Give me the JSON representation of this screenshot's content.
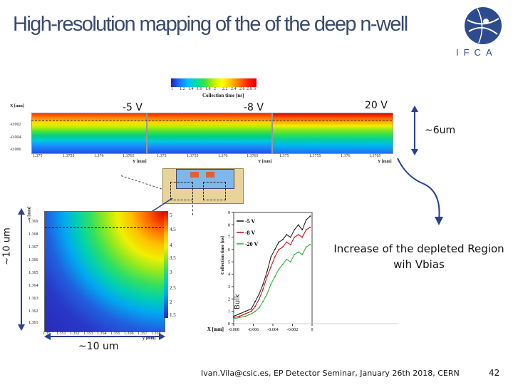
{
  "slide": {
    "title": "High-resolution mapping of the of the deep n-well",
    "logo_text": "IFCA",
    "footer": "Ivan.Vila@csic.es, EP Detector Seminar, January 26th 2018, CERN",
    "page_number": "42"
  },
  "top_maps": {
    "colorbar_label": "Collection time [ns]",
    "colorbar_ticks": [
      "1",
      "1.2",
      "1.4",
      "1.6",
      "1.8",
      "2",
      "2.2",
      "2.4",
      "2.6",
      "2.8",
      "3"
    ],
    "ylabel": "X [mm]",
    "y_ticks": [
      "-0.002",
      "-0.004",
      "-0.006"
    ],
    "xlabel": "Y [mm]",
    "panels": [
      {
        "voltage": "-5 V",
        "x_ticks": [
          "1.375",
          "1.3755",
          "1.376",
          "1.3765"
        ]
      },
      {
        "voltage": "-8 V",
        "x_ticks": [
          "1.375",
          "1.3755",
          "1.376",
          "1.3765"
        ]
      },
      {
        "voltage": "20 V",
        "x_ticks": [
          "1.375",
          "1.3755",
          "1.376",
          "1.3765"
        ]
      }
    ]
  },
  "annotations": {
    "depth": "~6um",
    "depleted": "Increase of the depleted Region wih Vbias",
    "height": "~10 um",
    "width": "~10 um",
    "bulk": "Bulk"
  },
  "heatmap": {
    "ylabel": "x [mm]",
    "xlabel": "y [mm]",
    "y_ticks": [
      "1.369",
      "1.368",
      "1.367",
      "1.366",
      "1.365",
      "1.364",
      "1.363",
      "1.362",
      "1.361"
    ],
    "x_ticks": [
      "1.35",
      "1.351",
      "1.352",
      "1.353",
      "1.354",
      "1.355",
      "1.356",
      "1.357",
      "1.358"
    ],
    "colorbar_ticks": [
      "5",
      "4.5",
      "4",
      "3.5",
      "3",
      "2.5",
      "2",
      "1.5"
    ]
  },
  "chart_data": {
    "type": "line",
    "title": "",
    "xlabel": "X [mm]",
    "ylabel": "Collection time [ns]",
    "xlim": [
      -0.008,
      0
    ],
    "ylim": [
      0,
      9
    ],
    "x_ticks": [
      "-0.008",
      "-0.006",
      "-0.004",
      "-0.002",
      "0"
    ],
    "y_ticks": [
      "0",
      "1",
      "2",
      "3",
      "4",
      "5",
      "6",
      "7",
      "8",
      "9"
    ],
    "legend": "top-left",
    "series": [
      {
        "name": "-5 V",
        "color": "#111111",
        "x": [
          -0.008,
          -0.0074,
          -0.0068,
          -0.0062,
          -0.0058,
          -0.0054,
          -0.005,
          -0.0046,
          -0.0042,
          -0.0038,
          -0.0034,
          -0.003,
          -0.0026,
          -0.0022,
          -0.0018,
          -0.0014,
          -0.001,
          -0.0006,
          -0.0002
        ],
        "y": [
          0.6,
          0.8,
          1.0,
          1.2,
          1.8,
          2.4,
          3.2,
          4.2,
          5.4,
          6.0,
          6.6,
          6.8,
          7.2,
          7.0,
          7.6,
          8.0,
          7.6,
          8.4,
          8.7
        ]
      },
      {
        "name": "-8 V",
        "color": "#cc0000",
        "x": [
          -0.008,
          -0.0074,
          -0.0068,
          -0.0062,
          -0.0058,
          -0.0054,
          -0.005,
          -0.0046,
          -0.0042,
          -0.0038,
          -0.0034,
          -0.003,
          -0.0026,
          -0.0022,
          -0.0018,
          -0.0014,
          -0.001,
          -0.0006,
          -0.0002
        ],
        "y": [
          0.5,
          0.6,
          0.8,
          1.0,
          1.4,
          2.0,
          2.8,
          3.8,
          4.6,
          5.4,
          6.0,
          6.2,
          6.6,
          6.4,
          7.0,
          7.2,
          7.0,
          7.6,
          7.8
        ]
      },
      {
        "name": "-20 V",
        "color": "#22aa22",
        "x": [
          -0.008,
          -0.0074,
          -0.0068,
          -0.0062,
          -0.0058,
          -0.0054,
          -0.005,
          -0.0046,
          -0.0042,
          -0.0038,
          -0.0034,
          -0.003,
          -0.0026,
          -0.0022,
          -0.0018,
          -0.0014,
          -0.001,
          -0.0006,
          -0.0002
        ],
        "y": [
          0.4,
          0.5,
          0.6,
          0.8,
          1.0,
          1.3,
          1.8,
          2.4,
          3.2,
          3.8,
          4.4,
          4.8,
          5.2,
          5.0,
          5.6,
          5.8,
          5.6,
          6.2,
          6.4
        ]
      }
    ]
  }
}
